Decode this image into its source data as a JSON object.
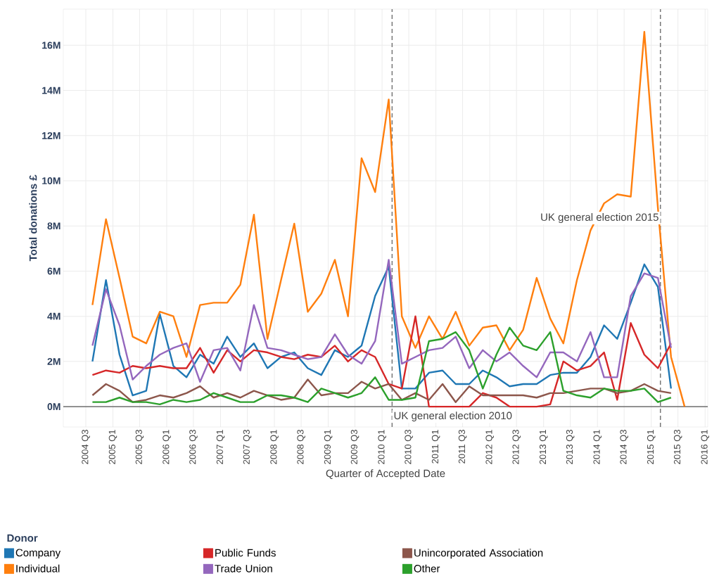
{
  "chart_data": {
    "type": "line",
    "xlabel": "Quarter of Accepted Date",
    "ylabel": "Total donations £",
    "legend_title": "Donor",
    "x": [
      "2004-08-15",
      "2004-11-15",
      "2005-02-15",
      "2005-05-15",
      "2005-08-15",
      "2005-11-15",
      "2006-02-15",
      "2006-05-15",
      "2006-08-15",
      "2006-11-15",
      "2007-02-15",
      "2007-05-15",
      "2007-08-15",
      "2007-11-15",
      "2008-02-15",
      "2008-05-15",
      "2008-08-15",
      "2008-11-15",
      "2009-02-15",
      "2009-05-15",
      "2009-08-15",
      "2009-11-15",
      "2010-02-15",
      "2010-05-15",
      "2010-08-15",
      "2010-11-15",
      "2011-02-15",
      "2011-05-15",
      "2011-08-15",
      "2011-11-15",
      "2012-02-15",
      "2012-05-15",
      "2012-08-15",
      "2012-11-15",
      "2013-02-15",
      "2013-05-15",
      "2013-08-15",
      "2013-11-15",
      "2014-02-15",
      "2014-05-15",
      "2014-08-15",
      "2014-11-15",
      "2015-02-15",
      "2015-05-15",
      "2015-08-15"
    ],
    "series": [
      {
        "name": "Company",
        "color": "#1f77b4",
        "values": [
          2.0,
          5.6,
          2.3,
          0.5,
          0.7,
          4.1,
          1.8,
          1.3,
          2.3,
          1.9,
          3.1,
          2.2,
          2.8,
          1.7,
          2.2,
          2.4,
          1.7,
          1.4,
          2.5,
          2.2,
          2.7,
          4.9,
          6.2,
          0.8,
          0.8,
          1.5,
          1.6,
          1.0,
          1.0,
          1.6,
          1.3,
          0.9,
          1.0,
          1.0,
          1.4,
          1.5,
          1.5,
          2.2,
          3.6,
          3.0,
          4.6,
          6.3,
          5.3,
          0.8,
          null
        ]
      },
      {
        "name": "Individual",
        "color": "#ff7f0e",
        "values": [
          4.5,
          8.3,
          5.7,
          3.1,
          2.8,
          4.2,
          4.0,
          2.2,
          4.5,
          4.6,
          4.6,
          5.4,
          8.5,
          3.0,
          5.6,
          8.1,
          4.2,
          5.0,
          6.5,
          4.0,
          11.0,
          9.5,
          13.6,
          4.0,
          2.6,
          4.0,
          3.0,
          4.2,
          2.7,
          3.5,
          3.6,
          2.5,
          3.4,
          5.7,
          3.9,
          2.8,
          5.6,
          7.8,
          9.0,
          9.4,
          9.3,
          16.6,
          8.8,
          2.2,
          0
        ]
      },
      {
        "name": "Public Funds",
        "color": "#d62728",
        "values": [
          1.4,
          1.6,
          1.5,
          1.8,
          1.7,
          1.8,
          1.7,
          1.7,
          2.6,
          1.5,
          2.5,
          2.0,
          2.5,
          2.4,
          2.2,
          2.1,
          2.3,
          2.2,
          2.7,
          2.0,
          2.5,
          2.2,
          1.0,
          0.8,
          4.0,
          0,
          0,
          0,
          0,
          0.6,
          0.4,
          0,
          0,
          0,
          0.1,
          2.0,
          1.6,
          1.8,
          2.4,
          0.3,
          3.7,
          2.3,
          1.7,
          2.8,
          null
        ]
      },
      {
        "name": "Trade Union",
        "color": "#9467bd",
        "values": [
          2.7,
          5.2,
          3.6,
          1.2,
          1.8,
          2.3,
          2.6,
          2.8,
          1.1,
          2.5,
          2.6,
          1.6,
          4.5,
          2.6,
          2.5,
          2.3,
          2.1,
          2.2,
          3.2,
          2.3,
          1.9,
          2.9,
          6.5,
          1.9,
          2.2,
          2.5,
          2.6,
          3.1,
          1.7,
          2.5,
          2.0,
          2.4,
          1.8,
          1.3,
          2.4,
          2.4,
          2.0,
          3.3,
          1.3,
          1.3,
          4.9,
          5.9,
          5.7,
          2.6,
          null
        ]
      },
      {
        "name": "Unincorporated Association",
        "color": "#8c564b",
        "values": [
          0.5,
          1.0,
          0.7,
          0.2,
          0.3,
          0.5,
          0.4,
          0.6,
          0.9,
          0.4,
          0.6,
          0.4,
          0.7,
          0.5,
          0.3,
          0.4,
          1.2,
          0.5,
          0.6,
          0.6,
          1.1,
          0.8,
          1.0,
          0.3,
          0.6,
          0.3,
          1.0,
          0.2,
          0.9,
          0.5,
          0.5,
          0.5,
          0.5,
          0.4,
          0.6,
          0.6,
          0.7,
          0.8,
          0.8,
          0.6,
          0.7,
          1.0,
          0.7,
          0.6,
          null
        ]
      },
      {
        "name": "Other",
        "color": "#2ca02c",
        "values": [
          0.2,
          0.2,
          0.4,
          0.2,
          0.2,
          0.1,
          0.3,
          0.2,
          0.3,
          0.6,
          0.4,
          0.2,
          0.2,
          0.5,
          0.5,
          0.4,
          0.2,
          0.8,
          0.6,
          0.4,
          0.6,
          1.3,
          0.3,
          0.3,
          0.4,
          2.9,
          3.0,
          3.3,
          2.5,
          0.8,
          2.3,
          3.5,
          2.7,
          2.5,
          3.3,
          0.7,
          0.5,
          0.4,
          0.8,
          0.7,
          0.7,
          0.8,
          0.2,
          0.4,
          null
        ]
      }
    ],
    "xlim": [
      "2004-01-30",
      "2016-01-19"
    ],
    "ylim": [
      -0.9,
      17.6
    ],
    "xticks": [
      {
        "value": "2004-07-01",
        "label": "2004 Q3"
      },
      {
        "value": "2005-01-01",
        "label": "2005 Q1"
      },
      {
        "value": "2005-07-01",
        "label": "2005 Q3"
      },
      {
        "value": "2006-01-01",
        "label": "2006 Q1"
      },
      {
        "value": "2006-07-01",
        "label": "2006 Q3"
      },
      {
        "value": "2007-01-01",
        "label": "2007 Q1"
      },
      {
        "value": "2007-07-01",
        "label": "2007 Q3"
      },
      {
        "value": "2008-01-01",
        "label": "2008 Q1"
      },
      {
        "value": "2008-07-01",
        "label": "2008 Q3"
      },
      {
        "value": "2009-01-01",
        "label": "2009 Q1"
      },
      {
        "value": "2009-07-01",
        "label": "2009 Q3"
      },
      {
        "value": "2010-01-01",
        "label": "2010 Q1"
      },
      {
        "value": "2010-07-01",
        "label": "2010 Q3"
      },
      {
        "value": "2011-01-01",
        "label": "2011 Q1"
      },
      {
        "value": "2011-07-01",
        "label": "2011 Q3"
      },
      {
        "value": "2012-01-01",
        "label": "2012 Q1"
      },
      {
        "value": "2012-07-01",
        "label": "2012 Q3"
      },
      {
        "value": "2013-01-01",
        "label": "2013 Q1"
      },
      {
        "value": "2013-07-01",
        "label": "2013 Q3"
      },
      {
        "value": "2014-01-01",
        "label": "2014 Q1"
      },
      {
        "value": "2014-07-01",
        "label": "2014 Q3"
      },
      {
        "value": "2015-01-01",
        "label": "2015 Q1"
      },
      {
        "value": "2015-07-01",
        "label": "2015 Q3"
      },
      {
        "value": "2016-01-01",
        "label": "2016 Q1"
      }
    ],
    "yticks": [
      {
        "value": 0,
        "label": "0M"
      },
      {
        "value": 2,
        "label": "2M"
      },
      {
        "value": 4,
        "label": "4M"
      },
      {
        "value": 6,
        "label": "6M"
      },
      {
        "value": 8,
        "label": "8M"
      },
      {
        "value": 10,
        "label": "10M"
      },
      {
        "value": 12,
        "label": "12M"
      },
      {
        "value": 14,
        "label": "14M"
      },
      {
        "value": 16,
        "label": "16M"
      }
    ],
    "ref_lines": [
      {
        "axis": "y",
        "value": 0,
        "color": "#555555",
        "line_style": "solid"
      },
      {
        "axis": "x",
        "value": "2010-03-10",
        "label": "UK general election 2010",
        "color": "#777777",
        "line_style": "dashed"
      },
      {
        "axis": "x",
        "value": "2015-03-04",
        "label": "UK general election 2015",
        "color": "#777777",
        "line_style": "dashed"
      }
    ],
    "grid": true,
    "legend": "bottom left",
    "marker": "none",
    "line_style": "solid"
  }
}
